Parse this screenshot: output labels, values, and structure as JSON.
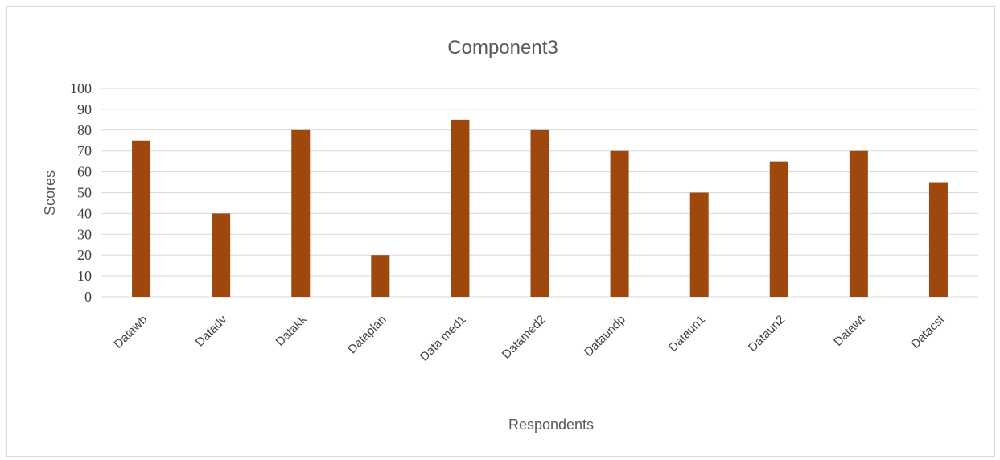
{
  "chart_data": {
    "type": "bar",
    "title": "Component3",
    "xlabel": "Respondents",
    "ylabel": "Scores",
    "categories": [
      "Datawb",
      "Datadv",
      "Datakk",
      "Dataplan",
      "Data med1",
      "Datamed2",
      "Dataundp",
      "Dataun1",
      "Dataun2",
      "Datawt",
      "Datacst"
    ],
    "values": [
      75,
      40,
      80,
      20,
      85,
      80,
      70,
      50,
      65,
      70,
      55
    ],
    "ylim": [
      0,
      100
    ],
    "yticks": [
      0,
      10,
      20,
      30,
      40,
      50,
      60,
      70,
      80,
      90,
      100
    ],
    "grid": true,
    "legend": "none",
    "bar_color": "#9e480e"
  }
}
